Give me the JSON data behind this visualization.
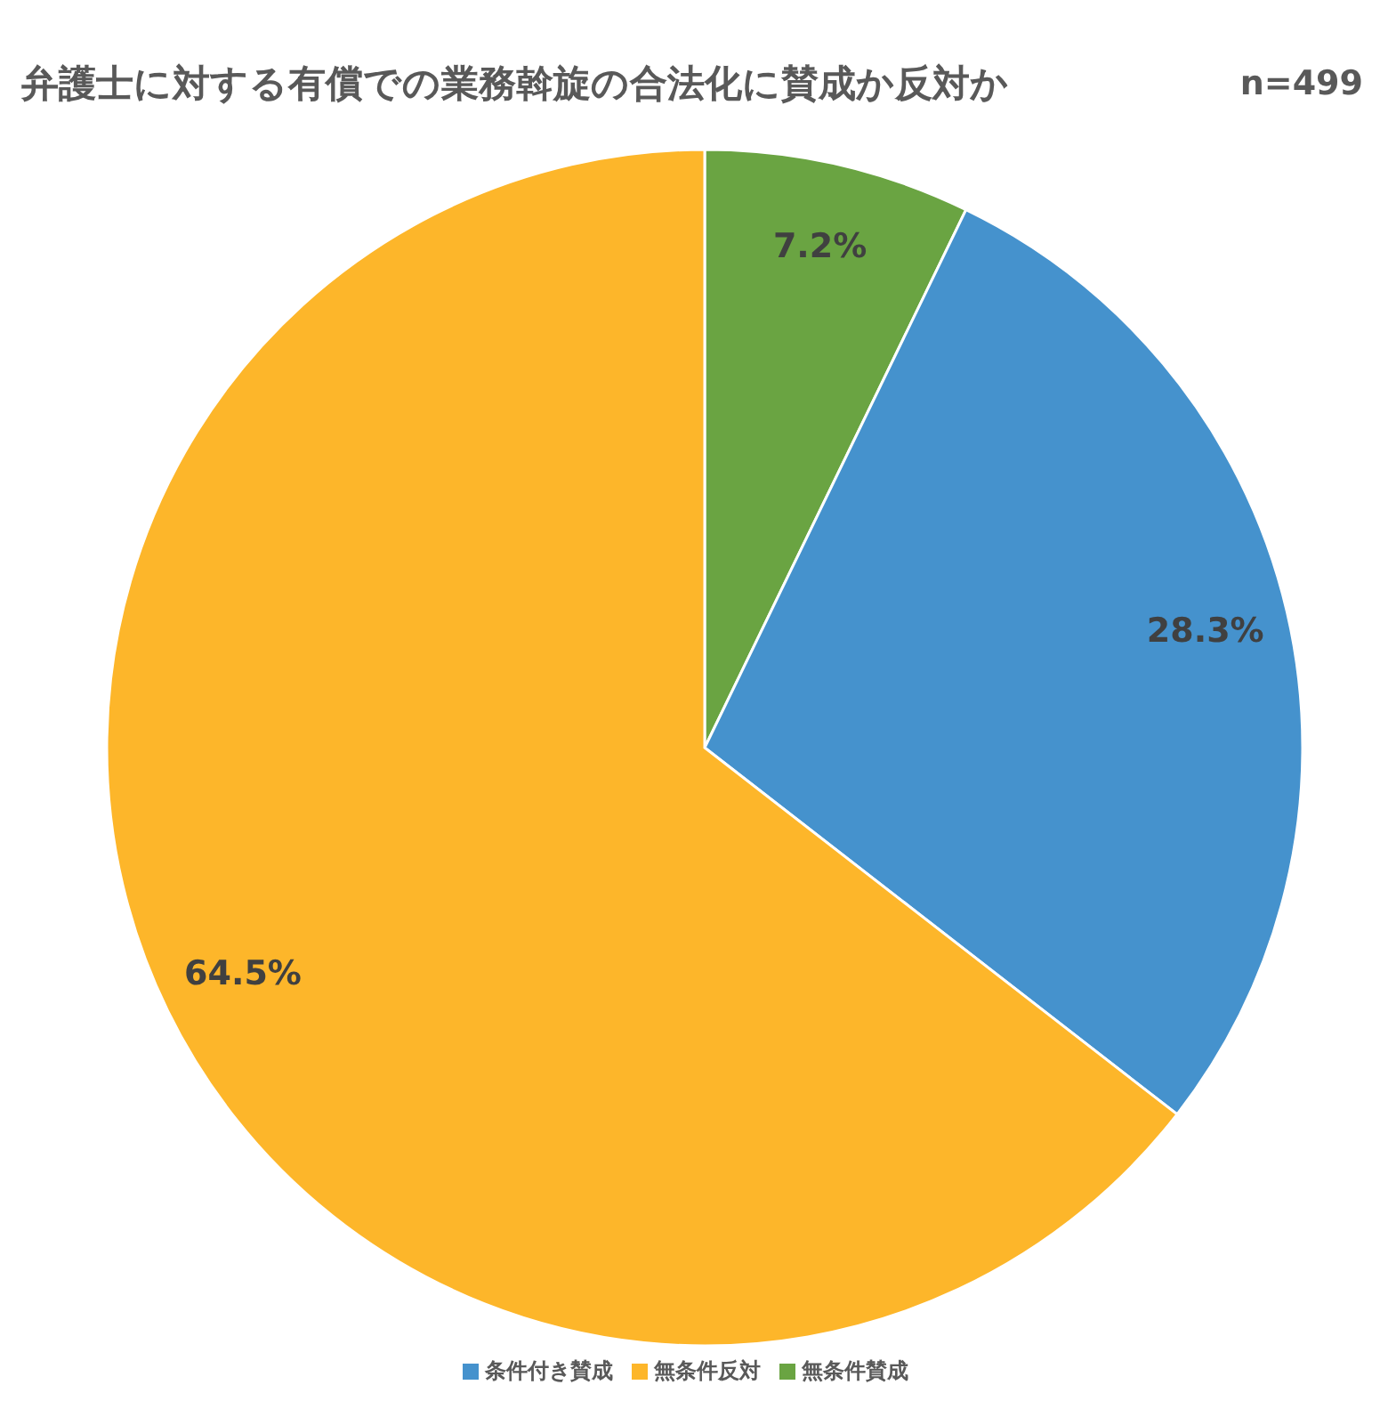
{
  "chart_data": {
    "type": "pie",
    "title": "弁護士に対する有償での業務斡旋の合法化に賛成か反対か",
    "annotations": [
      "n=499"
    ],
    "categories": [
      "無条件賛成",
      "条件付き賛成",
      "無条件反対"
    ],
    "values": [
      7.2,
      28.3,
      64.5
    ],
    "colors": [
      "#6aa442",
      "#4592cd",
      "#fdb62a"
    ],
    "value_labels": [
      "7.2%",
      "28.3%",
      "64.5%"
    ],
    "legend": "bottom"
  }
}
